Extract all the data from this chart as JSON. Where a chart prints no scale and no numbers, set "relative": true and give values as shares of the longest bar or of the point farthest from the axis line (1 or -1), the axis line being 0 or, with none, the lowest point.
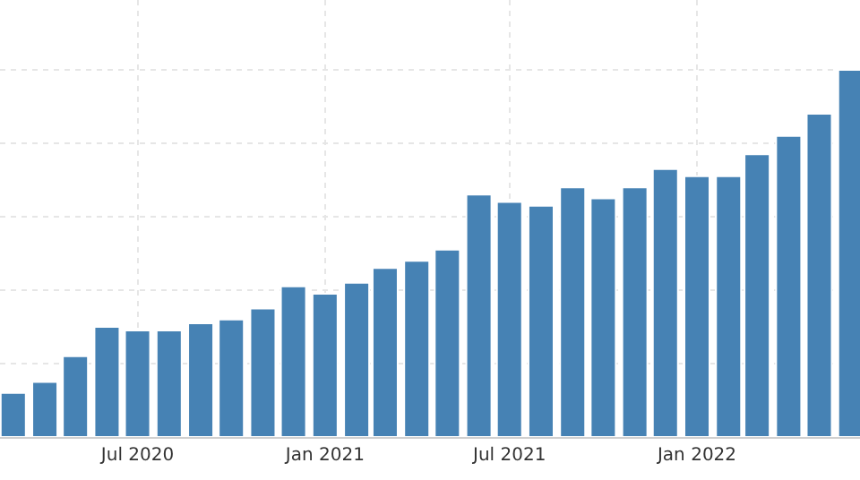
{
  "chart_data": {
    "type": "bar",
    "relative": true,
    "grid": true,
    "color": "#4682b4",
    "x": [
      "2020-03",
      "2020-04",
      "2020-05",
      "2020-06",
      "2020-07",
      "2020-08",
      "2020-09",
      "2020-10",
      "2020-11",
      "2020-12",
      "2021-01",
      "2021-02",
      "2021-03",
      "2021-04",
      "2021-05",
      "2021-06",
      "2021-07",
      "2021-08",
      "2021-09",
      "2021-10",
      "2021-11",
      "2021-12",
      "2022-01",
      "2022-02",
      "2022-03",
      "2022-04",
      "2022-05",
      "2022-06"
    ],
    "values": [
      0.12,
      0.15,
      0.22,
      0.3,
      0.29,
      0.29,
      0.31,
      0.32,
      0.35,
      0.41,
      0.39,
      0.42,
      0.46,
      0.48,
      0.51,
      0.66,
      0.64,
      0.63,
      0.68,
      0.65,
      0.68,
      0.73,
      0.71,
      0.71,
      0.77,
      0.82,
      0.88,
      1
    ],
    "xlim": [
      "2020-02-17",
      "2022-06-10"
    ],
    "xticks": [
      {
        "value": "2020-07",
        "label": "Jul 2020"
      },
      {
        "value": "2021-01",
        "label": "Jan 2021"
      },
      {
        "value": "2021-07",
        "label": "Jul 2021"
      },
      {
        "value": "2022-01",
        "label": "Jan 2022"
      }
    ]
  }
}
